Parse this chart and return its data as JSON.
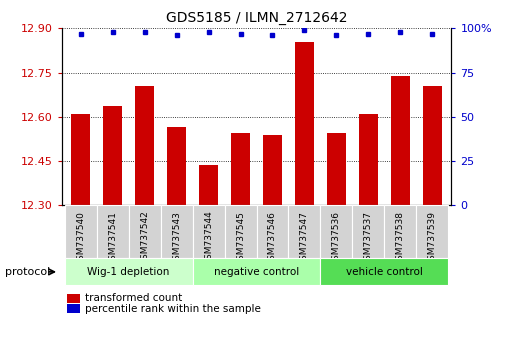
{
  "title": "GDS5185 / ILMN_2712642",
  "categories": [
    "GSM737540",
    "GSM737541",
    "GSM737542",
    "GSM737543",
    "GSM737544",
    "GSM737545",
    "GSM737546",
    "GSM737547",
    "GSM737536",
    "GSM737537",
    "GSM737538",
    "GSM737539"
  ],
  "bar_values": [
    12.61,
    12.635,
    12.705,
    12.565,
    12.435,
    12.545,
    12.54,
    12.855,
    12.545,
    12.61,
    12.74,
    12.705
  ],
  "percentile_values": [
    97,
    98,
    98,
    96,
    98,
    97,
    96,
    99,
    96,
    97,
    98,
    97
  ],
  "bar_color": "#cc0000",
  "percentile_color": "#0000cc",
  "ylim_left": [
    12.3,
    12.9
  ],
  "ylim_right": [
    0,
    100
  ],
  "yticks_left": [
    12.3,
    12.45,
    12.6,
    12.75,
    12.9
  ],
  "yticks_right": [
    0,
    25,
    50,
    75,
    100
  ],
  "groups": [
    {
      "label": "Wig-1 depletion",
      "start": 0,
      "end": 4,
      "color": "#ccffcc"
    },
    {
      "label": "negative control",
      "start": 4,
      "end": 8,
      "color": "#aaffaa"
    },
    {
      "label": "vehicle control",
      "start": 8,
      "end": 12,
      "color": "#55dd55"
    }
  ],
  "protocol_label": "protocol",
  "legend_items": [
    {
      "label": "transformed count",
      "color": "#cc0000"
    },
    {
      "label": "percentile rank within the sample",
      "color": "#0000cc"
    }
  ]
}
